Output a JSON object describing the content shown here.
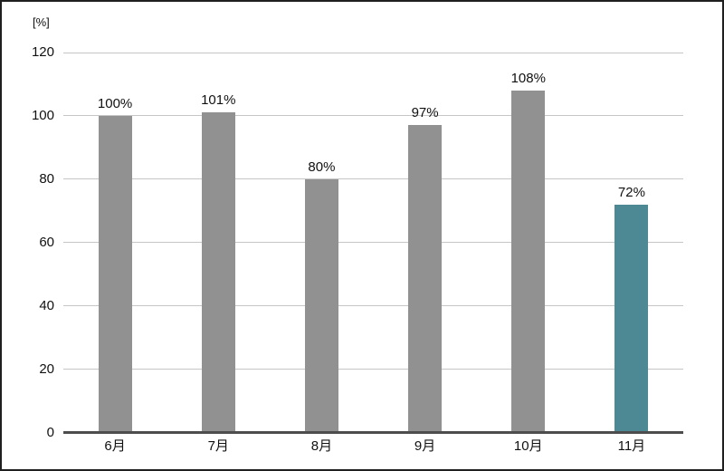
{
  "colors": {
    "bar_default": "#919191",
    "bar_highlight": "#4D8995",
    "axis_line": "#4d4d4d",
    "gridline": "#c6c6c6",
    "frame_border": "#1f1f1f",
    "background": "#ffffff",
    "text": "#111111"
  },
  "chart_data": {
    "type": "bar",
    "title": "",
    "ylabel": "[%]",
    "xlabel": "",
    "categories": [
      "6月",
      "7月",
      "8月",
      "9月",
      "10月",
      "11月"
    ],
    "values": [
      100,
      101,
      80,
      97,
      108,
      72
    ],
    "value_labels": [
      "100%",
      "101%",
      "80%",
      "97%",
      "108%",
      "72%"
    ],
    "highlight_index": 5,
    "yticks": [
      0,
      20,
      40,
      60,
      80,
      100,
      120
    ],
    "ylim": [
      0,
      120
    ],
    "grid": true,
    "legend": false
  }
}
